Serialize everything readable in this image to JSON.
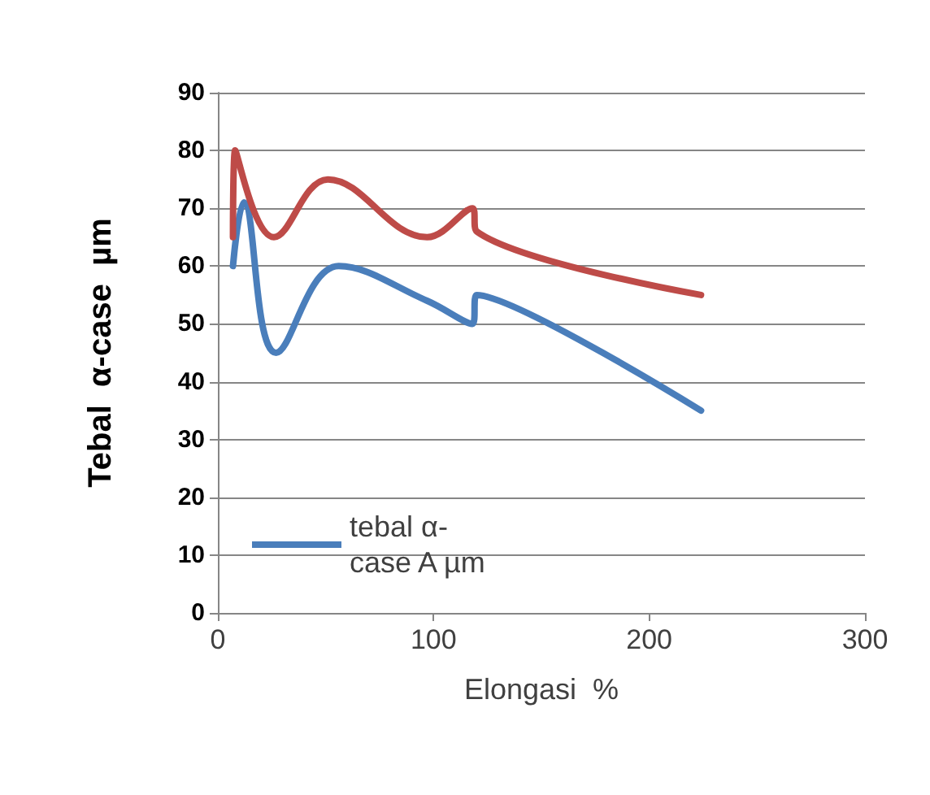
{
  "chart_data": {
    "type": "line",
    "xlabel": "Elongasi  %",
    "ylabel": "Tebal  α-case  µm",
    "series": [
      {
        "name": "tebal α-case A µm",
        "color": "#4a7ebb",
        "x": [
          7,
          12,
          27,
          56,
          97,
          118,
          120,
          224
        ],
        "values": [
          60,
          71,
          45,
          60,
          54,
          50,
          55,
          35
        ]
      },
      {
        "color": "#be4b48",
        "x": [
          7,
          8,
          26,
          51,
          97,
          118,
          120,
          224
        ],
        "values": [
          65,
          80,
          65,
          75,
          65,
          70,
          66,
          55
        ]
      }
    ],
    "xlim": [
      0,
      300
    ],
    "xticks": [
      0,
      100,
      200,
      300
    ],
    "ylim": [
      0,
      90
    ],
    "yticks": [
      0,
      10,
      20,
      30,
      40,
      50,
      60,
      70,
      80,
      90
    ],
    "grid": "y",
    "legend": "bottom left",
    "marker": "none",
    "line_style": "solid"
  }
}
